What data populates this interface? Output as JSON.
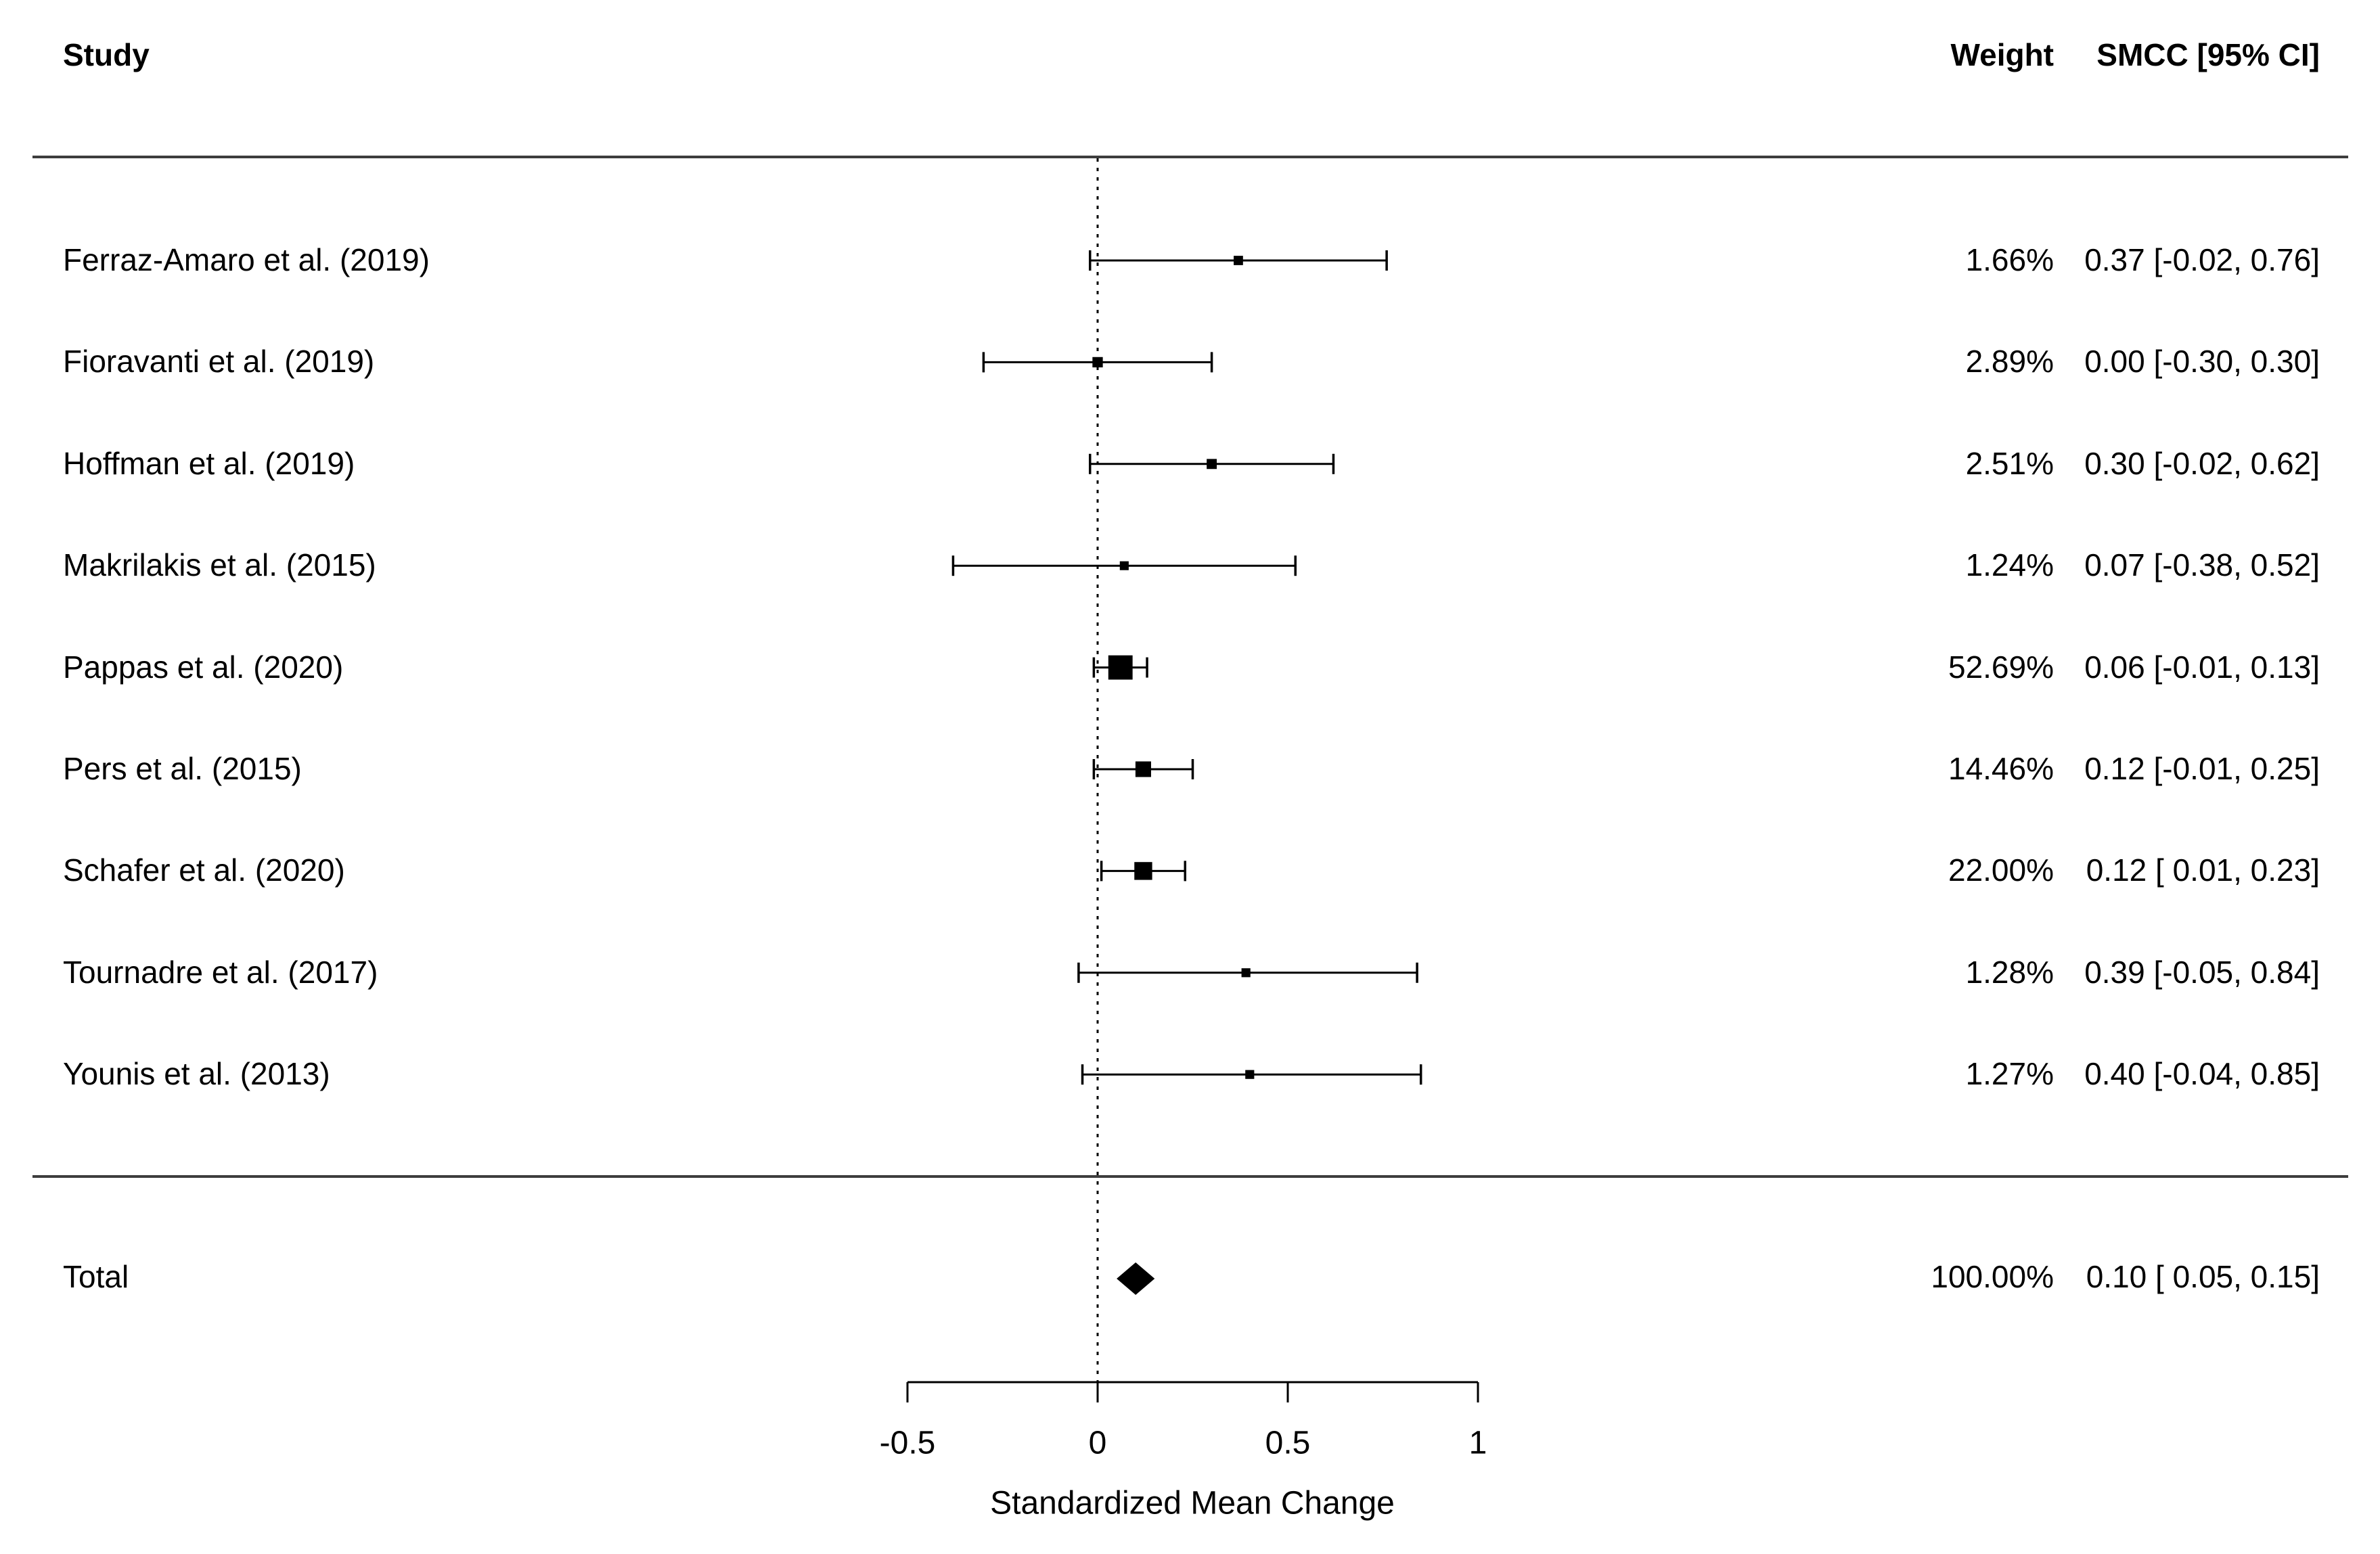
{
  "page": {
    "background": "#ffffff",
    "foreground": "#000000",
    "rule_color": "#3d3d3d"
  },
  "chart_data": {
    "type": "forest",
    "title": "",
    "xlabel": "Standardized Mean Change",
    "x_ticks": [
      -0.5,
      0,
      0.5,
      1
    ],
    "x_tick_labels": [
      "-0.5",
      "0",
      "0.5",
      "1"
    ],
    "xlim": [
      -0.5,
      1
    ],
    "zero_line": 0,
    "grid": false,
    "columns": {
      "study": "Study",
      "weight": "Weight",
      "smcc": "SMCC [95% CI]"
    },
    "studies": [
      {
        "study": "Ferraz-Amaro et al. (2019)",
        "weight": 1.66,
        "weight_label": "1.66%",
        "estimate": 0.37,
        "ci_low": -0.02,
        "ci_high": 0.76,
        "smcc_label": "0.37 [-0.02, 0.76]"
      },
      {
        "study": "Fioravanti et al. (2019)",
        "weight": 2.89,
        "weight_label": "2.89%",
        "estimate": 0.0,
        "ci_low": -0.3,
        "ci_high": 0.3,
        "smcc_label": "0.00 [-0.30, 0.30]"
      },
      {
        "study": "Hoffman et al. (2019)",
        "weight": 2.51,
        "weight_label": "2.51%",
        "estimate": 0.3,
        "ci_low": -0.02,
        "ci_high": 0.62,
        "smcc_label": "0.30 [-0.02, 0.62]"
      },
      {
        "study": "Makrilakis et al. (2015)",
        "weight": 1.24,
        "weight_label": "1.24%",
        "estimate": 0.07,
        "ci_low": -0.38,
        "ci_high": 0.52,
        "smcc_label": "0.07 [-0.38, 0.52]"
      },
      {
        "study": "Pappas et al. (2020)",
        "weight": 52.69,
        "weight_label": "52.69%",
        "estimate": 0.06,
        "ci_low": -0.01,
        "ci_high": 0.13,
        "smcc_label": "0.06 [-0.01, 0.13]"
      },
      {
        "study": "Pers et al. (2015)",
        "weight": 14.46,
        "weight_label": "14.46%",
        "estimate": 0.12,
        "ci_low": -0.01,
        "ci_high": 0.25,
        "smcc_label": "0.12 [-0.01, 0.25]"
      },
      {
        "study": "Schafer et al. (2020)",
        "weight": 22.0,
        "weight_label": "22.00%",
        "estimate": 0.12,
        "ci_low": 0.01,
        "ci_high": 0.23,
        "smcc_label": "0.12 [ 0.01, 0.23]"
      },
      {
        "study": "Tournadre et al. (2017)",
        "weight": 1.28,
        "weight_label": "1.28%",
        "estimate": 0.39,
        "ci_low": -0.05,
        "ci_high": 0.84,
        "smcc_label": "0.39 [-0.05, 0.84]"
      },
      {
        "study": "Younis et al. (2013)",
        "weight": 1.27,
        "weight_label": "1.27%",
        "estimate": 0.4,
        "ci_low": -0.04,
        "ci_high": 0.85,
        "smcc_label": "0.40 [-0.04, 0.85]"
      }
    ],
    "total": {
      "study": "Total",
      "weight": 100.0,
      "weight_label": "100.00%",
      "estimate": 0.1,
      "ci_low": 0.05,
      "ci_high": 0.15,
      "smcc_label": "0.10 [ 0.05, 0.15]"
    }
  }
}
